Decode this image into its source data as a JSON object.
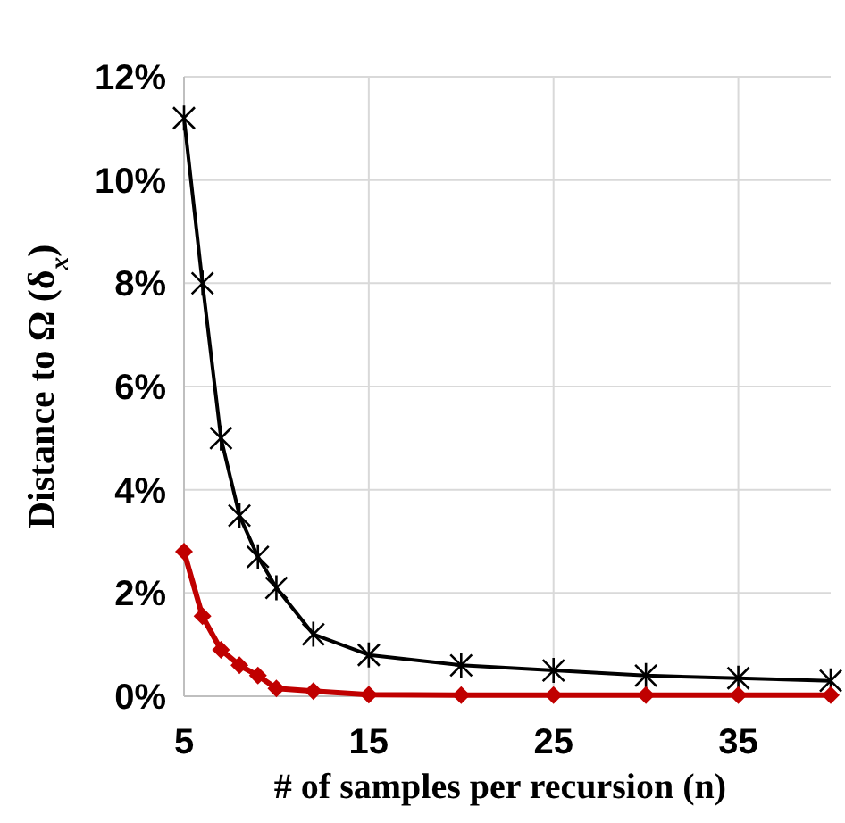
{
  "chart_data": {
    "type": "line",
    "xlabel": "# of samples per recursion (n)",
    "ylabel": "Distance to Ω (δ$_{x}$)",
    "x": [
      5,
      6,
      7,
      8,
      9,
      10,
      12,
      15,
      20,
      25,
      30,
      35,
      40
    ],
    "series": [
      {
        "color": "#000000",
        "marker": "cross",
        "values": [
          11.2,
          8.0,
          5.0,
          3.5,
          2.7,
          2.1,
          1.2,
          0.8,
          0.6,
          0.5,
          0.4,
          0.35,
          0.3
        ]
      },
      {
        "color": "#c00000",
        "marker": "diamond",
        "values": [
          2.8,
          1.55,
          0.9,
          0.6,
          0.4,
          0.15,
          0.1,
          0.03,
          0.02,
          0.02,
          0.02,
          0.02,
          0.02
        ]
      }
    ],
    "xlim": [
      5,
      40
    ],
    "xticks": [
      5,
      15,
      25,
      35
    ],
    "ylim": [
      0,
      12
    ],
    "yticks": [
      {
        "value": 0,
        "label": "0%"
      },
      {
        "value": 2,
        "label": "2%"
      },
      {
        "value": 4,
        "label": "4%"
      },
      {
        "value": 6,
        "label": "6%"
      },
      {
        "value": 8,
        "label": "8%"
      },
      {
        "value": 10,
        "label": "10%"
      },
      {
        "value": 12,
        "label": "12%"
      }
    ],
    "grid": true
  }
}
